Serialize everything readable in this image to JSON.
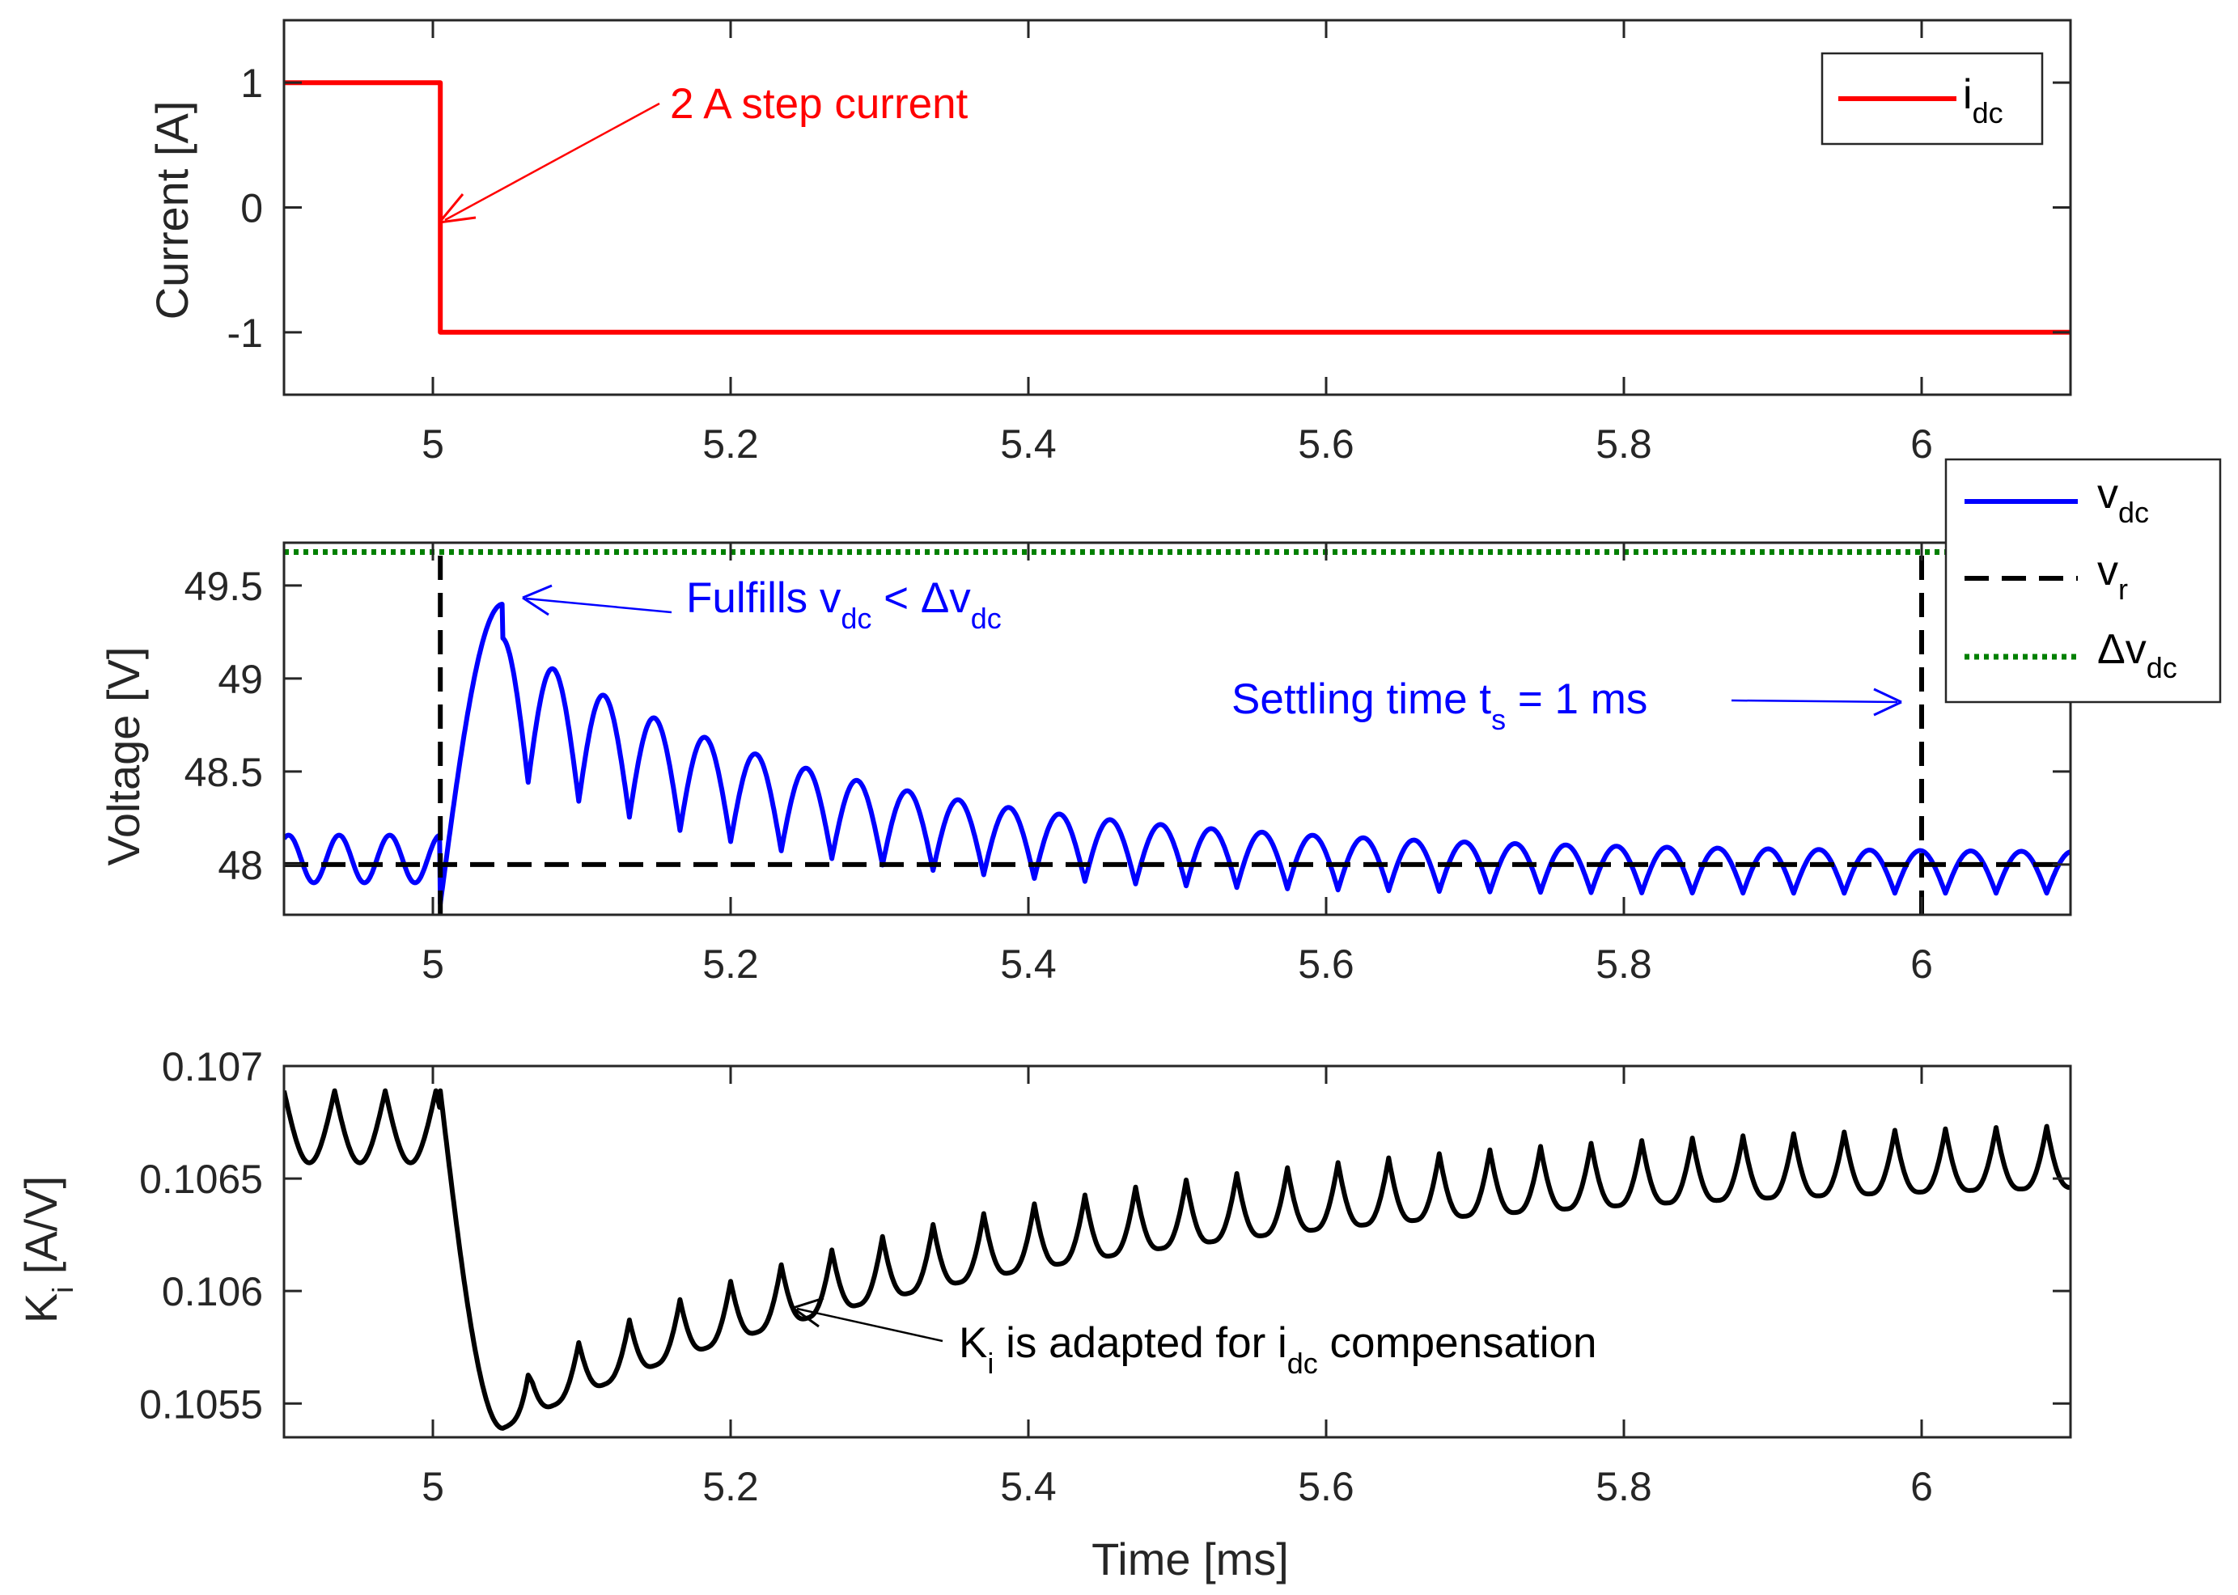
{
  "chart_data": [
    {
      "type": "line",
      "id": "current",
      "xlim": [
        4.9,
        6.1
      ],
      "ylim": [
        -1.5,
        1.5
      ],
      "xticks": [
        5,
        5.2,
        5.4,
        5.6,
        5.8,
        6
      ],
      "xtick_labels": [
        "5",
        "5.2",
        "5.4",
        "5.6",
        "5.8",
        "6"
      ],
      "yticks": [
        1,
        0,
        -1
      ],
      "ytick_labels": [
        "1",
        "0",
        "-1"
      ],
      "ylabel": "Current [A]",
      "xlabel": "",
      "series": [
        {
          "name": "i_dc",
          "color": "#ff0000",
          "style": "solid",
          "x": [
            4.9,
            5.005,
            5.005,
            6.1
          ],
          "y": [
            1,
            1,
            -1,
            -1
          ]
        }
      ],
      "legend": {
        "placement": "top-right",
        "entries": [
          {
            "main": "i",
            "sub": "dc",
            "color": "#ff0000",
            "style": "solid"
          }
        ]
      },
      "annotations": [
        {
          "text": "2 A step current",
          "color": "#ff0000",
          "target": [
            5.005,
            -0.1
          ]
        }
      ]
    },
    {
      "type": "line",
      "id": "voltage",
      "xlim": [
        4.9,
        6.1
      ],
      "ylim": [
        47.73,
        49.73
      ],
      "xticks": [
        5,
        5.2,
        5.4,
        5.6,
        5.8,
        6
      ],
      "xtick_labels": [
        "5",
        "5.2",
        "5.4",
        "5.6",
        "5.8",
        "6"
      ],
      "yticks": [
        49.5,
        49,
        48.5,
        48
      ],
      "ytick_labels": [
        "49.5",
        "49",
        "48.5",
        "48"
      ],
      "ylabel": "Voltage [V]",
      "xlabel": "",
      "series": [
        {
          "name": "v_dc",
          "color": "#0000ff",
          "style": "solid",
          "model": {
            "mean": 48.0,
            "before_amp": 0.16,
            "step_time": 5.005,
            "drop_min": 47.79,
            "peak_time": 5.047,
            "peak_value": 49.4,
            "ripple_period": 0.034,
            "peak_above_mean": 1.4,
            "decay_tau": 0.22,
            "steady_offset": 0.06,
            "ripple_amp_end": 0.16
          }
        },
        {
          "name": "v_r",
          "color": "#000000",
          "style": "dashed",
          "segments": [
            {
              "x": [
                4.9,
                6.1
              ],
              "y": [
                48,
                48
              ]
            },
            {
              "x": [
                5.005,
                5.005
              ],
              "y": [
                47.73,
                49.73
              ]
            },
            {
              "x": [
                6.0,
                6.0
              ],
              "y": [
                47.73,
                49.73
              ]
            }
          ]
        },
        {
          "name": "Δv_dc",
          "color": "#008000",
          "style": "dotted",
          "x": [
            4.9,
            6.1
          ],
          "y": [
            49.68,
            49.68
          ]
        }
      ],
      "legend": {
        "placement": "outside-top-right",
        "entries": [
          {
            "main": "v",
            "sub": "dc",
            "color": "#0000ff",
            "style": "solid"
          },
          {
            "main": "v",
            "sub": "r",
            "color": "#000000",
            "style": "dashed"
          },
          {
            "main": "Δv",
            "sub": "dc",
            "color": "#008000",
            "style": "dotted"
          }
        ]
      },
      "annotations": [
        {
          "color": "#0000ff",
          "parts": [
            [
              "Fulfills v",
              ""
            ],
            [
              "dc",
              "sub"
            ],
            [
              " < Δv",
              ""
            ],
            [
              "dc",
              "sub"
            ]
          ],
          "target": [
            5.06,
            49.4
          ]
        },
        {
          "color": "#0000ff",
          "parts": [
            [
              "Settling time t",
              ""
            ],
            [
              "s",
              "sub"
            ],
            [
              " = 1 ms",
              ""
            ]
          ],
          "target": [
            5.99,
            48.88
          ]
        }
      ]
    },
    {
      "type": "line",
      "id": "gain",
      "xlim": [
        4.9,
        6.1
      ],
      "ylim": [
        0.10535,
        0.107
      ],
      "xticks": [
        5,
        5.2,
        5.4,
        5.6,
        5.8,
        6
      ],
      "xtick_labels": [
        "5",
        "5.2",
        "5.4",
        "5.6",
        "5.8",
        "6"
      ],
      "yticks": [
        0.107,
        0.1065,
        0.106,
        0.1055
      ],
      "ytick_labels": [
        "0.107",
        "0.1065",
        "0.106",
        "0.1055"
      ],
      "ylabel_parts": [
        [
          "K",
          ""
        ],
        [
          "i",
          "sub"
        ],
        [
          " [A/V]",
          ""
        ]
      ],
      "xlabel": "Time [ms]",
      "series": [
        {
          "name": "K_i",
          "color": "#000000",
          "style": "solid",
          "model": {
            "before_low": 0.10657,
            "before_high": 0.10689,
            "step_time": 5.005,
            "min_time": 5.047,
            "min_value": 0.10539,
            "ripple_period": 0.034,
            "asym_low": 0.10652,
            "asym_high": 0.10678,
            "decay_tau": 0.36
          }
        }
      ],
      "annotations": [
        {
          "color": "#000000",
          "parts": [
            [
              "K",
              ""
            ],
            [
              "i",
              "sub"
            ],
            [
              " is adapted for i",
              ""
            ],
            [
              "dc",
              "sub"
            ],
            [
              " compensation",
              ""
            ]
          ],
          "target": [
            5.24,
            0.10595
          ]
        }
      ]
    }
  ]
}
